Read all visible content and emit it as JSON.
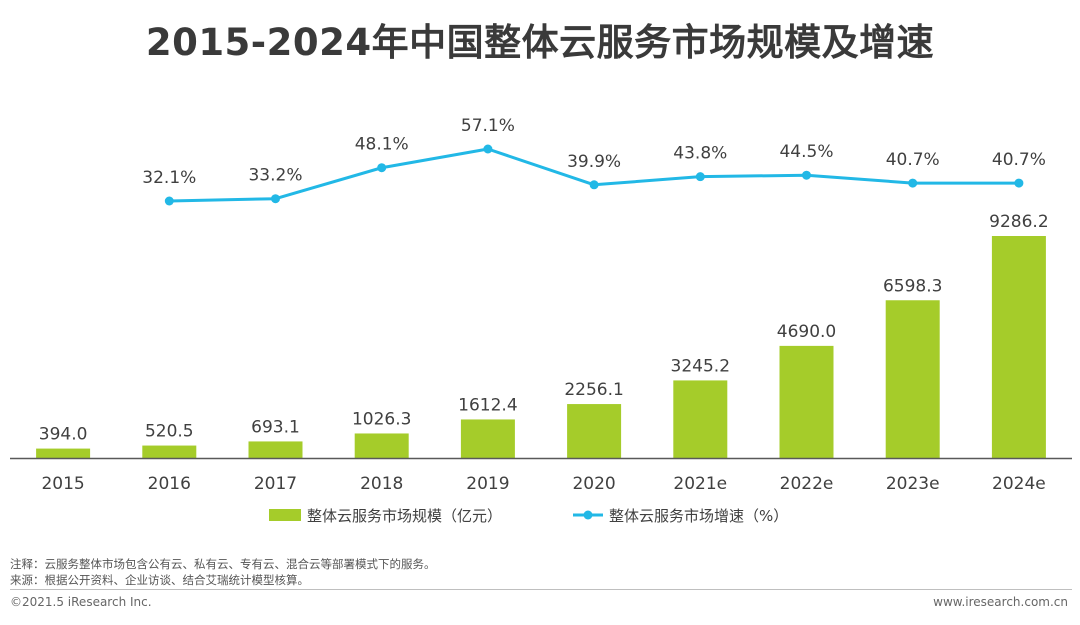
{
  "page": {
    "title": "2015-2024年中国整体云服务市场规模及增速",
    "note": "注释：云服务整体市场包含公有云、私有云、专有云、混合云等部署模式下的服务。",
    "source": "来源：根据公开资料、企业访谈、结合艾瑞统计模型核算。",
    "copyright": "©2021.5 iResearch Inc.",
    "website": "www.iresearch.com.cn"
  },
  "colors": {
    "bar": "#a5cc2a",
    "line": "#22b8e6",
    "text": "#404040",
    "axis": "#595959"
  },
  "chart_data": {
    "type": "bar",
    "categories": [
      "2015",
      "2016",
      "2017",
      "2018",
      "2019",
      "2020",
      "2021e",
      "2022e",
      "2023e",
      "2024e"
    ],
    "series": [
      {
        "name": "整体云服务市场规模（亿元）",
        "type": "bar",
        "values": [
          394.0,
          520.5,
          693.1,
          1026.3,
          1612.4,
          2256.1,
          3245.2,
          4690.0,
          6598.3,
          9286.2
        ],
        "labels": [
          "394.0",
          "520.5",
          "693.1",
          "1026.3",
          "1612.4",
          "2256.1",
          "3245.2",
          "4690.0",
          "6598.3",
          "9286.2"
        ]
      },
      {
        "name": "整体云服务市场增速（%）",
        "type": "line",
        "values": [
          null,
          32.1,
          33.2,
          48.1,
          57.1,
          39.9,
          43.8,
          44.5,
          40.7,
          40.7
        ],
        "labels": [
          "",
          "32.1%",
          "33.2%",
          "48.1%",
          "57.1%",
          "39.9%",
          "43.8%",
          "44.5%",
          "40.7%",
          "40.7%"
        ]
      }
    ],
    "legend_position": "bottom",
    "grid": false
  }
}
